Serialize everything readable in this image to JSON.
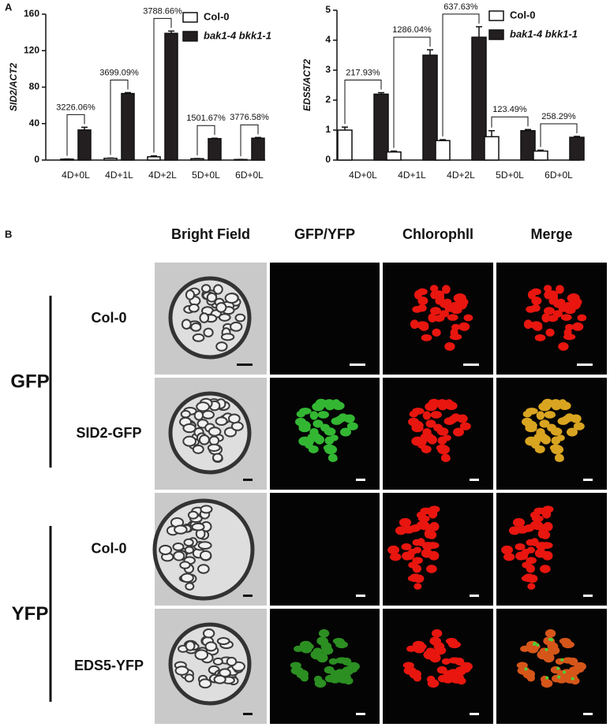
{
  "panel_labels": [
    "A",
    "B"
  ],
  "chart_data": [
    {
      "type": "bar",
      "ylabel": "SID2/ACT2",
      "categories": [
        "4D+0L",
        "4D+1L",
        "4D+2L",
        "5D+0L",
        "6D+0L"
      ],
      "series": [
        {
          "name": "Col-0",
          "color": "#ffffff",
          "values": [
            1.0,
            1.9,
            3.6,
            1.5,
            0.6
          ],
          "errors": [
            0.2,
            0.3,
            1.0,
            0.2,
            0.1
          ]
        },
        {
          "name": "bak1-4 bkk1-1",
          "color": "#231f20",
          "values": [
            33,
            73,
            139,
            23.5,
            24
          ],
          "errors": [
            3,
            1,
            2.5,
            0.5,
            0.8
          ]
        }
      ],
      "annotations": [
        "3226.06%",
        "3699.09%",
        "3788.66%",
        "1501.67%",
        "3776.58%"
      ],
      "ylim": [
        0,
        160
      ],
      "yticks": [
        0,
        40,
        80,
        120,
        160
      ]
    },
    {
      "type": "bar",
      "ylabel": "EDS5/ACT2",
      "categories": [
        "4D+0L",
        "4D+1L",
        "4D+2L",
        "5D+0L",
        "6D+0L"
      ],
      "series": [
        {
          "name": "Col-0",
          "color": "#ffffff",
          "values": [
            1.0,
            0.27,
            0.65,
            0.78,
            0.3
          ],
          "errors": [
            0.1,
            0.03,
            0.03,
            0.2,
            0.03
          ]
        },
        {
          "name": "bak1-4 bkk1-1",
          "color": "#231f20",
          "values": [
            2.2,
            3.5,
            4.1,
            0.98,
            0.76
          ],
          "errors": [
            0.05,
            0.18,
            0.35,
            0.04,
            0.03
          ]
        }
      ],
      "annotations": [
        "217.93%",
        "1286.04%",
        "637.63%",
        "123.49%",
        "258.29%"
      ],
      "ylim": [
        0,
        5
      ],
      "yticks": [
        0,
        1,
        2,
        3,
        4,
        5
      ]
    }
  ],
  "panel_b": {
    "columns": [
      "Bright Field",
      "GFP/YFP",
      "Chlorophll",
      "Merge"
    ],
    "groups": [
      {
        "label": "GFP",
        "rows": [
          "Col-0",
          "SID2-GFP"
        ]
      },
      {
        "label": "YFP",
        "rows": [
          "Col-0",
          "EDS5-YFP"
        ]
      }
    ]
  }
}
